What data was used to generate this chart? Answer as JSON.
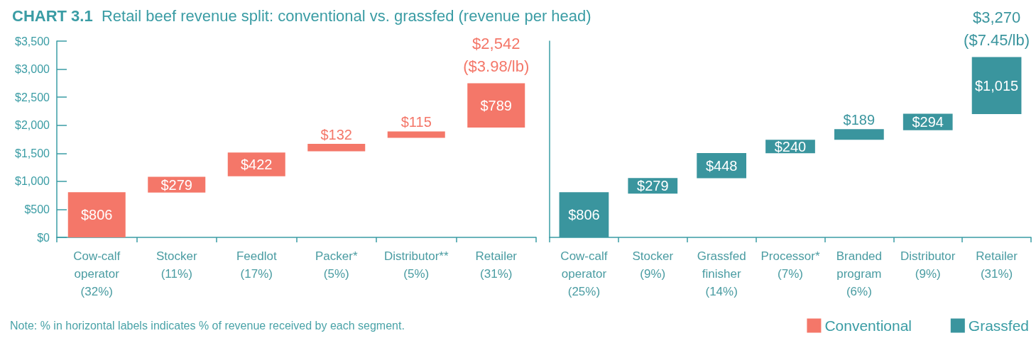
{
  "chart_data": [
    {
      "type": "bar",
      "title": "CHART 3.1  Retail beef revenue split: conventional vs. grassfed (revenue per head)",
      "categories": [
        "Cow-calf\noperator\n(32%)",
        "Stocker\n(11%)",
        "Feedlot\n(17%)",
        "Packer*\n(5%)",
        "Distributor**\n(5%)",
        "Retailer\n(31%)"
      ],
      "series": [
        {
          "name": "Conventional",
          "color": "#f47769",
          "values": [
            806,
            279,
            422,
            132,
            115,
            789
          ],
          "base": [
            0,
            800,
            1090,
            1535,
            1775,
            1960
          ],
          "value_labels": [
            "$806",
            "$279",
            "$422",
            "$132",
            "$115",
            "$789"
          ]
        }
      ],
      "ylim": [
        0,
        3500
      ],
      "yticks": [
        {
          "value": 0,
          "label": "$0"
        },
        {
          "value": 500,
          "label": "$500"
        },
        {
          "value": 1000,
          "label": "$1,000"
        },
        {
          "value": 1500,
          "label": "$1,500"
        },
        {
          "value": 2000,
          "label": "$2,000"
        },
        {
          "value": 2500,
          "label": "$2,500"
        },
        {
          "value": 3000,
          "label": "$3,000"
        },
        {
          "value": 3500,
          "label": "$3,500"
        }
      ],
      "grid": false,
      "legend": "bottom right",
      "annotations": [
        {
          "text": "$2,542\n($3.98/lb)",
          "x": "Retailer\n(31%)",
          "y": 2749
        },
        "Note: % in horizontal labels indicates % of revenue received by each segment."
      ]
    },
    {
      "type": "bar",
      "categories": [
        "Cow-calf\noperator\n(25%)",
        "Stocker\n(9%)",
        "Grassfed\nfinisher\n(14%)",
        "Processor*\n(7%)",
        "Branded\nprogram\n(6%)",
        "Distributor\n(9%)",
        "Retailer\n(31%)"
      ],
      "series": [
        {
          "name": "Grassfed",
          "color": "#3a959e",
          "values": [
            806,
            279,
            448,
            240,
            189,
            294,
            1015
          ],
          "base": [
            0,
            780,
            1055,
            1500,
            1740,
            1910,
            2200
          ],
          "value_labels": [
            "$806",
            "$279",
            "$448",
            "$240",
            "$189",
            "$294",
            "$1,015"
          ]
        }
      ],
      "ylim": [
        0,
        3500
      ],
      "tick_labels": "x",
      "grid": false,
      "legend": "bottom right",
      "annotations": [
        {
          "text": "$3,270\n($7.45/lb)",
          "x": "Retailer\n(31%)",
          "y": 3215
        }
      ]
    }
  ]
}
